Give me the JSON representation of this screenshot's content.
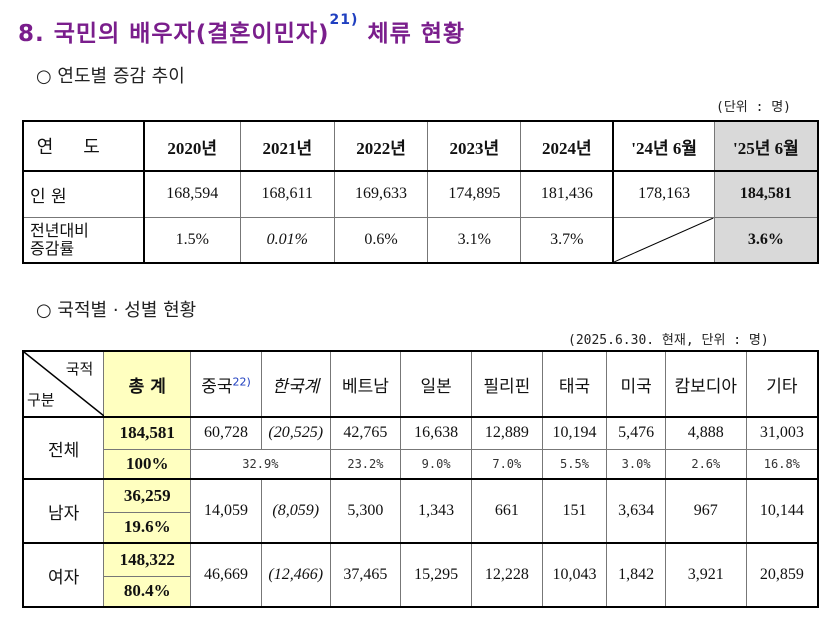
{
  "title": {
    "main": "8. 국민의 배우자(결혼이민자)",
    "sup": "21)",
    "tail": " 체류 현황"
  },
  "section1": {
    "subtitle": "○ 연도별 증감 추이",
    "unit": "(단위 : 명)",
    "head_label": "연도",
    "years": [
      "2020년",
      "2021년",
      "2022년",
      "2023년",
      "2024년",
      "'24년 6월",
      "'25년 6월"
    ],
    "row1_label": "인 원",
    "row1": [
      "168,594",
      "168,611",
      "169,633",
      "174,895",
      "181,436",
      "178,163",
      "184,581"
    ],
    "row2_label_1": "전년대비",
    "row2_label_2": "증감률",
    "row2": [
      "1.5%",
      "0.01%",
      "0.6%",
      "3.1%",
      "3.7%",
      "",
      "3.6%"
    ]
  },
  "section2": {
    "subtitle": "○ 국적별 · 성별 현황",
    "unit": "(2025.6.30. 현재, 단위 : 명)",
    "corner_top": "국적",
    "corner_bottom": "구분",
    "headers": {
      "total": "총 계",
      "china": "중국",
      "china_sup": "22)",
      "korean_chinese": "한국계",
      "vietnam": "베트남",
      "japan": "일본",
      "philippines": "필리핀",
      "thailand": "태국",
      "usa": "미국",
      "cambodia": "캄보디아",
      "other": "기타"
    },
    "rows": {
      "all": {
        "label": "전체",
        "total": "184,581",
        "total_pct": "100%",
        "china": "60,728",
        "korean_chinese": "(20,525)",
        "vietnam": "42,765",
        "japan": "16,638",
        "philippines": "12,889",
        "thailand": "10,194",
        "usa": "5,476",
        "cambodia": "4,888",
        "other": "31,003",
        "china_pct": "32.9%",
        "vietnam_pct": "23.2%",
        "japan_pct": "9.0%",
        "philippines_pct": "7.0%",
        "thailand_pct": "5.5%",
        "usa_pct": "3.0%",
        "cambodia_pct": "2.6%",
        "other_pct": "16.8%"
      },
      "male": {
        "label": "남자",
        "total": "36,259",
        "total_pct": "19.6%",
        "china": "14,059",
        "korean_chinese": "(8,059)",
        "vietnam": "5,300",
        "japan": "1,343",
        "philippines": "661",
        "thailand": "151",
        "usa": "3,634",
        "cambodia": "967",
        "other": "10,144"
      },
      "female": {
        "label": "여자",
        "total": "148,322",
        "total_pct": "80.4%",
        "china": "46,669",
        "korean_chinese": "(12,466)",
        "vietnam": "37,465",
        "japan": "15,295",
        "philippines": "12,228",
        "thailand": "10,043",
        "usa": "1,842",
        "cambodia": "3,921",
        "other": "20,859"
      }
    }
  },
  "colors": {
    "title": "#7a1e8c",
    "highlight_gray": "#d9d9d9",
    "highlight_yellow": "#ffffc0",
    "footnote_blue": "#2040c0"
  }
}
